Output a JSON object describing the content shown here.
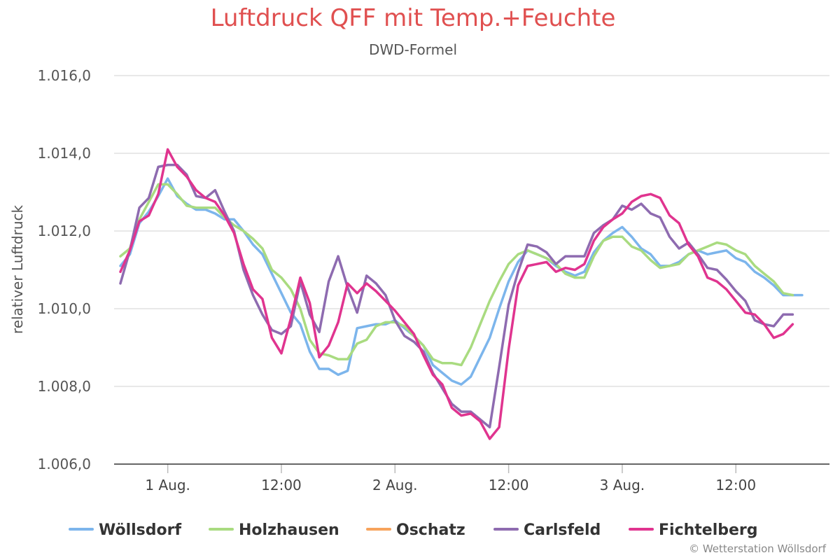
{
  "chart_data": {
    "type": "line",
    "title": "Luftdruck QFF mit Temp.+Feuchte",
    "subtitle": "DWD-Formel",
    "ylabel": "relativer Luftdruck",
    "xlabel": "",
    "ylim": [
      1006.0,
      1016.0
    ],
    "yticks": [
      1006.0,
      1008.0,
      1010.0,
      1012.0,
      1014.0,
      1016.0
    ],
    "ytick_labels": [
      "1.006,0",
      "1.008,0",
      "1.010,0",
      "1.012,0",
      "1.014,0",
      "1.016,0"
    ],
    "xlim": [
      "2024-07-31T19:00",
      "2024-08-03T21:00"
    ],
    "xtick_labels": [
      "1 Aug.",
      "12:00",
      "2 Aug.",
      "12:00",
      "3 Aug.",
      "12:00"
    ],
    "xtick_times": [
      "2024-08-01T00:00",
      "2024-08-01T12:00",
      "2024-08-02T00:00",
      "2024-08-02T12:00",
      "2024-08-03T00:00",
      "2024-08-03T12:00"
    ],
    "x_start": "2024-07-31T19:00",
    "x_step_hours": 1,
    "grid": "horizontal",
    "legend_position": "bottom",
    "series": [
      {
        "name": "Wöllsdorf",
        "color": "#7cb5ec",
        "values": [
          1011.1,
          1011.4,
          1012.2,
          1012.5,
          1012.9,
          1013.35,
          1012.9,
          1012.7,
          1012.55,
          1012.55,
          1012.45,
          1012.3,
          1012.3,
          1012.0,
          1011.65,
          1011.4,
          1010.9,
          1010.4,
          1009.9,
          1009.6,
          1008.9,
          1008.45,
          1008.45,
          1008.3,
          1008.4,
          1009.5,
          1009.55,
          1009.6,
          1009.6,
          1009.7,
          1009.5,
          1009.3,
          1009.05,
          1008.55,
          1008.35,
          1008.15,
          1008.05,
          1008.25,
          1008.75,
          1009.25,
          1010.0,
          1010.7,
          1011.2,
          1011.5,
          1011.4,
          1011.3,
          1011.1,
          1010.95,
          1010.85,
          1010.95,
          1011.45,
          1011.75,
          1011.95,
          1012.1,
          1011.85,
          1011.55,
          1011.4,
          1011.1,
          1011.1,
          1011.2,
          1011.4,
          1011.5,
          1011.4,
          1011.45,
          1011.5,
          1011.3,
          1011.2,
          1010.95,
          1010.8,
          1010.6,
          1010.35,
          1010.35,
          1010.35
        ]
      },
      {
        "name": "Holzhausen",
        "color": "#a9db80",
        "values": [
          1011.35,
          1011.55,
          1012.3,
          1012.75,
          1013.2,
          1013.2,
          1012.95,
          1012.65,
          1012.6,
          1012.6,
          1012.6,
          1012.35,
          1012.15,
          1012.0,
          1011.8,
          1011.55,
          1011.0,
          1010.8,
          1010.5,
          1010.0,
          1009.2,
          1008.85,
          1008.8,
          1008.7,
          1008.7,
          1009.1,
          1009.2,
          1009.55,
          1009.65,
          1009.65,
          1009.55,
          1009.3,
          1009.05,
          1008.7,
          1008.6,
          1008.6,
          1008.55,
          1009.0,
          1009.6,
          1010.2,
          1010.7,
          1011.15,
          1011.4,
          1011.5,
          1011.4,
          1011.3,
          1011.15,
          1010.9,
          1010.8,
          1010.8,
          1011.35,
          1011.75,
          1011.85,
          1011.85,
          1011.6,
          1011.5,
          1011.25,
          1011.05,
          1011.1,
          1011.15,
          1011.4,
          1011.5,
          1011.6,
          1011.7,
          1011.65,
          1011.5,
          1011.4,
          1011.1,
          1010.9,
          1010.7,
          1010.4,
          1010.35
        ]
      },
      {
        "name": "Oschatz",
        "color": "#f7a35c",
        "values": []
      },
      {
        "name": "Carlsfeld",
        "color": "#8e6bb0",
        "values": [
          1010.65,
          1011.5,
          1012.6,
          1012.85,
          1013.65,
          1013.7,
          1013.7,
          1013.45,
          1012.9,
          1012.85,
          1013.05,
          1012.5,
          1012.0,
          1011.0,
          1010.35,
          1009.85,
          1009.45,
          1009.35,
          1009.55,
          1010.7,
          1009.85,
          1009.4,
          1010.7,
          1011.35,
          1010.55,
          1009.9,
          1010.85,
          1010.65,
          1010.35,
          1009.7,
          1009.3,
          1009.15,
          1008.9,
          1008.35,
          1007.95,
          1007.55,
          1007.35,
          1007.35,
          1007.15,
          1006.95,
          1008.5,
          1010.1,
          1010.95,
          1011.65,
          1011.6,
          1011.45,
          1011.15,
          1011.35,
          1011.35,
          1011.35,
          1011.95,
          1012.15,
          1012.3,
          1012.65,
          1012.55,
          1012.7,
          1012.45,
          1012.35,
          1011.85,
          1011.55,
          1011.7,
          1011.4,
          1011.05,
          1011.0,
          1010.75,
          1010.45,
          1010.2,
          1009.7,
          1009.6,
          1009.55,
          1009.85,
          1009.85
        ]
      },
      {
        "name": "Fichtelberg",
        "color": "#e0348f",
        "values": [
          1010.95,
          1011.5,
          1012.25,
          1012.4,
          1012.95,
          1014.1,
          1013.65,
          1013.4,
          1013.05,
          1012.85,
          1012.75,
          1012.4,
          1011.95,
          1011.15,
          1010.5,
          1010.25,
          1009.25,
          1008.85,
          1009.75,
          1010.8,
          1010.15,
          1008.75,
          1009.05,
          1009.65,
          1010.65,
          1010.4,
          1010.65,
          1010.45,
          1010.2,
          1009.95,
          1009.65,
          1009.35,
          1008.8,
          1008.3,
          1008.05,
          1007.45,
          1007.25,
          1007.3,
          1007.1,
          1006.65,
          1006.95,
          1008.95,
          1010.6,
          1011.1,
          1011.15,
          1011.2,
          1010.95,
          1011.05,
          1011.0,
          1011.15,
          1011.75,
          1012.1,
          1012.3,
          1012.45,
          1012.75,
          1012.9,
          1012.95,
          1012.85,
          1012.4,
          1012.2,
          1011.65,
          1011.35,
          1010.8,
          1010.7,
          1010.5,
          1010.2,
          1009.9,
          1009.85,
          1009.6,
          1009.25,
          1009.35,
          1009.6
        ]
      }
    ]
  },
  "credits": "© Wetterstation Wöllsdorf"
}
